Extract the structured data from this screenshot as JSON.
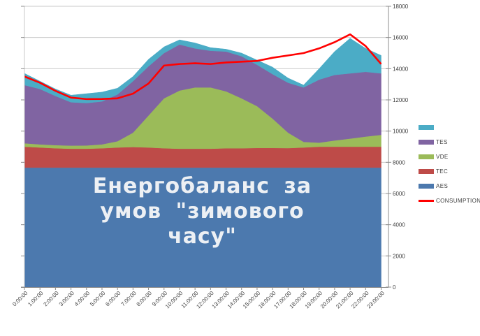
{
  "watermark": {
    "lines": [
      "Енергобаланс за",
      "умов \"зимового",
      "часу\""
    ]
  },
  "chart_data": {
    "type": "area",
    "stacked": true,
    "title": "",
    "xlabel": "",
    "ylabel": "",
    "ylim": [
      0,
      18000
    ],
    "ytick_step": 2000,
    "yticks": [
      0,
      2000,
      4000,
      6000,
      8000,
      10000,
      12000,
      14000,
      16000,
      18000
    ],
    "grid": true,
    "legend_position": "right",
    "x": [
      "0:00:00",
      "1:00:00",
      "2:00:00",
      "3:00:00",
      "4:00:00",
      "5:00:00",
      "6:00:00",
      "7:00:00",
      "8:00:00",
      "9:00:00",
      "10:00:00",
      "11:00:00",
      "12:00:00",
      "13:00:00",
      "14:00:00",
      "15:00:00",
      "16:00:00",
      "17:00:00",
      "18:00:00",
      "19:00:00",
      "20:00:00",
      "21:00:00",
      "22:00:00",
      "23:00:00"
    ],
    "series": [
      {
        "name": "AES",
        "kind": "area",
        "color": "#4C79AE",
        "values": [
          7660,
          7660,
          7660,
          7660,
          7660,
          7660,
          7660,
          7660,
          7660,
          7660,
          7660,
          7660,
          7660,
          7660,
          7660,
          7660,
          7660,
          7660,
          7660,
          7660,
          7660,
          7660,
          7660,
          7660
        ]
      },
      {
        "name": "TEC",
        "kind": "area",
        "color": "#BE4B48",
        "values": [
          1340,
          1290,
          1240,
          1210,
          1210,
          1240,
          1290,
          1320,
          1290,
          1240,
          1210,
          1210,
          1210,
          1240,
          1240,
          1260,
          1260,
          1250,
          1290,
          1340,
          1340,
          1340,
          1340,
          1340
        ]
      },
      {
        "name": "VDE",
        "kind": "area",
        "color": "#9BBB59",
        "values": [
          220,
          200,
          200,
          200,
          210,
          250,
          400,
          920,
          2050,
          3200,
          3730,
          3930,
          3930,
          3650,
          3200,
          2680,
          1880,
          990,
          360,
          260,
          400,
          520,
          650,
          760
        ]
      },
      {
        "name": "TES",
        "kind": "area",
        "color": "#8064A2",
        "values": [
          3730,
          3550,
          3150,
          2780,
          2720,
          2750,
          3000,
          3300,
          3150,
          2900,
          2950,
          2500,
          2350,
          2550,
          2700,
          2650,
          2850,
          3200,
          3490,
          4040,
          4200,
          4180,
          4150,
          3940
        ]
      },
      {
        "name": "",
        "kind": "area",
        "color": "#4BACC6",
        "values": [
          750,
          500,
          450,
          450,
          600,
          600,
          400,
          300,
          450,
          400,
          300,
          350,
          200,
          150,
          200,
          300,
          450,
          300,
          150,
          700,
          1500,
          2250,
          1500,
          1150
        ]
      },
      {
        "name": "CONSUMPTION",
        "kind": "line",
        "color": "#FF0000",
        "values": [
          13500,
          13100,
          12580,
          12150,
          12050,
          12060,
          12100,
          12400,
          13050,
          14200,
          14300,
          14350,
          14300,
          14400,
          14450,
          14500,
          14700,
          14850,
          15000,
          15300,
          15700,
          16200,
          15450,
          14300
        ]
      }
    ],
    "legend": [
      {
        "label": "",
        "color": "#4BACC6",
        "shape": "square"
      },
      {
        "label": "TES",
        "color": "#8064A2",
        "shape": "square"
      },
      {
        "label": "VDE",
        "color": "#9BBB59",
        "shape": "square"
      },
      {
        "label": "TEC",
        "color": "#BE4B48",
        "shape": "square"
      },
      {
        "label": "AES",
        "color": "#4C79AE",
        "shape": "square"
      },
      {
        "label": "CONSUMPTION",
        "color": "#FF0000",
        "shape": "line"
      }
    ]
  }
}
